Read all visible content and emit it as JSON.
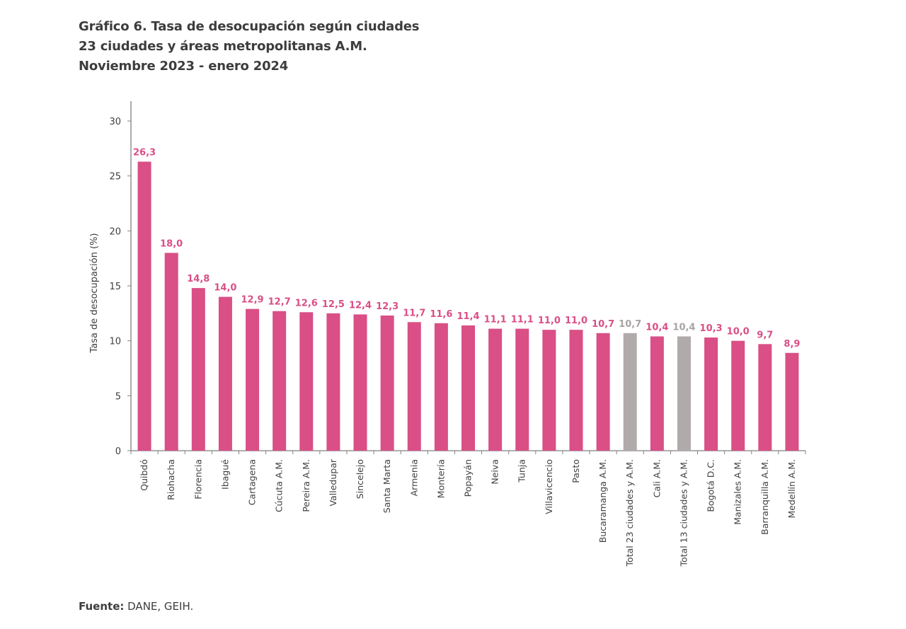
{
  "header": {
    "title_lines": [
      "Gráfico 6. Tasa de desocupación según ciudades",
      "23 ciudades y áreas metropolitanas A.M.",
      "Noviembre 2023 - enero 2024"
    ]
  },
  "footer": {
    "source_label": "Fuente:",
    "source_text": " DANE, GEIH."
  },
  "colors": {
    "city_bar": "#d94f86",
    "total_bar": "#b0aaaa",
    "city_label": "#d94f86",
    "total_label": "#a9a4a4",
    "axis": "#808080"
  },
  "chart_data": {
    "type": "bar",
    "title": "Gráfico 6. Tasa de desocupación según ciudades — 23 ciudades y áreas metropolitanas A.M. — Noviembre 2023 - enero 2024",
    "xlabel": "",
    "ylabel": "Tasa de desocupación (%)",
    "ylim": [
      0,
      30
    ],
    "yticks": [
      0,
      5,
      10,
      15,
      20,
      25,
      30
    ],
    "grid": false,
    "legend": "none",
    "categories": [
      "Quibdó",
      "Riohacha",
      "Florencia",
      "Ibagué",
      "Cartagena",
      "Cúcuta A.M.",
      "Pereira A.M.",
      "Valledupar",
      "Sincelejo",
      "Santa Marta",
      "Armenia",
      "Montería",
      "Popayán",
      "Neiva",
      "Tunja",
      "Villavicencio",
      "Pasto",
      "Bucaramanga A.M.",
      "Total 23 ciudades y A.M.",
      "Cali A.M.",
      "Total 13 ciudades y A.M.",
      "Bogotá D.C.",
      "Manizales A.M.",
      "Barranquilla A.M.",
      "Medellín A.M."
    ],
    "values": [
      26.3,
      18.0,
      14.8,
      14.0,
      12.9,
      12.7,
      12.6,
      12.5,
      12.4,
      12.3,
      11.7,
      11.6,
      11.4,
      11.1,
      11.1,
      11.0,
      11.0,
      10.7,
      10.7,
      10.4,
      10.4,
      10.3,
      10.0,
      9.7,
      8.9
    ],
    "value_labels": [
      "26,3",
      "18,0",
      "14,8",
      "14,0",
      "12,9",
      "12,7",
      "12,6",
      "12,5",
      "12,4",
      "12,3",
      "11,7",
      "11,6",
      "11,4",
      "11,1",
      "11,1",
      "11,0",
      "11,0",
      "10,7",
      "10,7",
      "10,4",
      "10,4",
      "10,3",
      "10,0",
      "9,7",
      "8,9"
    ],
    "is_total": [
      false,
      false,
      false,
      false,
      false,
      false,
      false,
      false,
      false,
      false,
      false,
      false,
      false,
      false,
      false,
      false,
      false,
      false,
      true,
      false,
      true,
      false,
      false,
      false,
      false
    ]
  }
}
